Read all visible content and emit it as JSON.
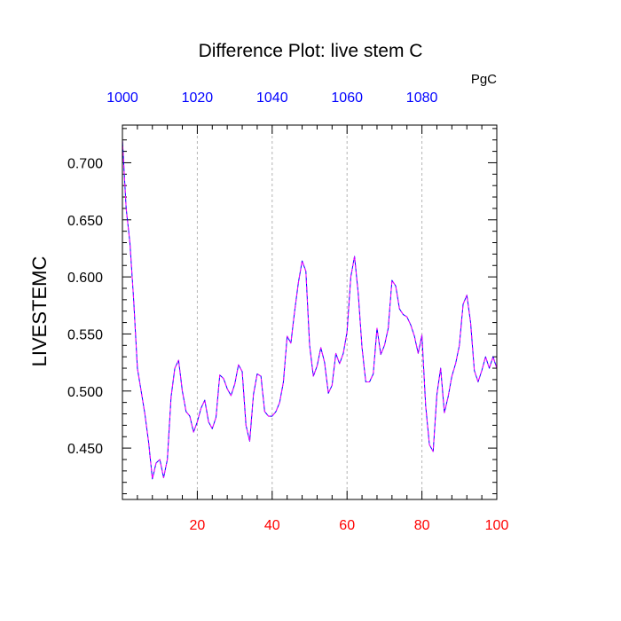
{
  "chart_data": {
    "type": "line",
    "title": "Difference Plot: live stem C",
    "units_label": "PgC",
    "ylabel": "LIVESTEMC",
    "xlim": [
      0,
      100
    ],
    "ylim": [
      0.405,
      0.733
    ],
    "y_ticks": [
      0.45,
      0.5,
      0.55,
      0.6,
      0.65,
      0.7
    ],
    "y_tick_labels": [
      "0.450",
      "0.500",
      "0.550",
      "0.600",
      "0.650",
      "0.700"
    ],
    "x_bottom_ticks": [
      20,
      40,
      60,
      80,
      100
    ],
    "x_bottom_tick_labels": [
      "20",
      "40",
      "60",
      "80",
      "100"
    ],
    "x_top_ticks": [
      0,
      20,
      40,
      60,
      80
    ],
    "x_top_tick_labels": [
      "1000",
      "1020",
      "1040",
      "1060",
      "1080"
    ],
    "grid": "vertical dashed at x=20,40,60,80",
    "colors": {
      "bottom_tick_labels": "#ff0000",
      "top_tick_labels": "#0000ff",
      "line_base": "#0000ff",
      "line_dash": "#ff00ff",
      "grid": "#b4b4b4"
    },
    "series": [
      {
        "x": [
          0,
          1,
          2,
          3,
          4,
          5,
          6,
          7,
          8,
          9,
          10,
          11,
          12,
          13,
          14,
          15,
          16,
          17,
          18,
          19,
          20,
          21,
          22,
          23,
          24,
          25,
          26,
          27,
          28,
          29,
          30,
          31,
          32,
          33,
          34,
          35,
          36,
          37,
          38,
          39,
          40,
          41,
          42,
          43,
          44,
          45,
          46,
          47,
          48,
          49,
          50,
          51,
          52,
          53,
          54,
          55,
          56,
          57,
          58,
          59,
          60,
          61,
          62,
          63,
          64,
          65,
          66,
          67,
          68,
          69,
          70,
          71,
          72,
          73,
          74,
          75,
          76,
          77,
          78,
          79,
          80,
          81,
          82,
          83,
          84,
          85,
          86,
          87,
          88,
          89,
          90,
          91,
          92,
          93,
          94,
          95,
          96,
          97,
          98,
          99,
          100
        ],
        "values": [
          0.72,
          0.66,
          0.63,
          0.58,
          0.52,
          0.5,
          0.48,
          0.455,
          0.423,
          0.437,
          0.44,
          0.424,
          0.44,
          0.495,
          0.52,
          0.527,
          0.5,
          0.482,
          0.478,
          0.464,
          0.473,
          0.485,
          0.492,
          0.473,
          0.467,
          0.477,
          0.514,
          0.511,
          0.502,
          0.496,
          0.506,
          0.523,
          0.517,
          0.47,
          0.456,
          0.497,
          0.515,
          0.513,
          0.482,
          0.478,
          0.478,
          0.482,
          0.49,
          0.508,
          0.548,
          0.542,
          0.57,
          0.595,
          0.614,
          0.605,
          0.54,
          0.513,
          0.522,
          0.538,
          0.525,
          0.498,
          0.505,
          0.533,
          0.524,
          0.533,
          0.552,
          0.6,
          0.618,
          0.585,
          0.538,
          0.508,
          0.508,
          0.515,
          0.555,
          0.532,
          0.54,
          0.555,
          0.597,
          0.592,
          0.572,
          0.567,
          0.565,
          0.558,
          0.548,
          0.533,
          0.549,
          0.487,
          0.453,
          0.447,
          0.497,
          0.52,
          0.481,
          0.495,
          0.513,
          0.524,
          0.54,
          0.576,
          0.584,
          0.56,
          0.518,
          0.508,
          0.518,
          0.53,
          0.52,
          0.53,
          0.52
        ]
      }
    ]
  }
}
